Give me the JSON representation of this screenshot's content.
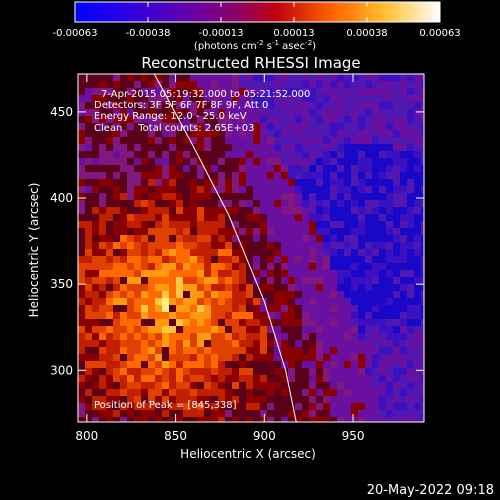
{
  "colorbar": {
    "ticks": [
      "-0.00063",
      "-0.00038",
      "-0.00013",
      "0.00013",
      "0.00038",
      "0.00063"
    ],
    "units_prefix": "(photons cm",
    "units_exp1": "-2",
    "units_mid": " s",
    "units_exp2": "-1",
    "units_mid2": " asec",
    "units_exp3": "-2",
    "units_suffix": ")",
    "colors": [
      "#0000ff",
      "#4a00c8",
      "#7a00a0",
      "#b00040",
      "#e04000",
      "#ff9000",
      "#ffe060",
      "#ffffff"
    ]
  },
  "chart_data": {
    "type": "heatmap",
    "title": "Reconstructed RHESSI Image",
    "xlabel": "Heliocentric X (arcsec)",
    "ylabel": "Heliocentric Y (arcsec)",
    "xlim": [
      795,
      990
    ],
    "ylim": [
      270,
      472
    ],
    "xticks": [
      800,
      850,
      900,
      950
    ],
    "yticks": [
      300,
      350,
      400,
      450
    ],
    "limb_line": {
      "x": [
        838,
        860,
        880,
        900,
        912,
        918
      ],
      "y": [
        472,
        430,
        390,
        340,
        300,
        270
      ]
    },
    "peak": {
      "x": 845,
      "y": 338
    },
    "annotations": [
      "7-Apr-2015 05:19:32.000 to 05:21:52.000",
      "Detectors: 3F 5F 6F 7F 8F 9F, Att 0",
      "Energy Range: 12.0 - 25.0 keV",
      "Clean     Total counts: 2.65E+03"
    ],
    "peak_label": "Position of Peak = [845,338]"
  },
  "timestamp": "20-May-2022 09:18"
}
